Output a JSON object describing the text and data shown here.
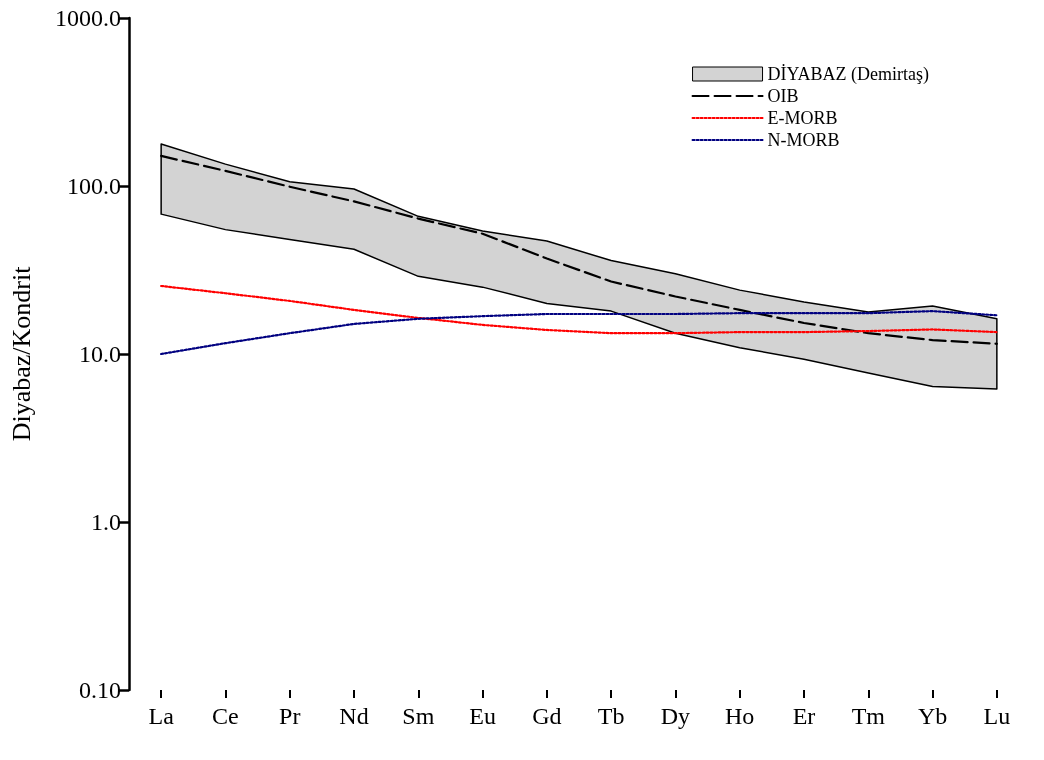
{
  "chart_data": {
    "type": "line",
    "ylabel": "Diyabaz/Kondrit",
    "log": "y",
    "grid": false,
    "legend": "top right",
    "marker": "none",
    "categories": [
      "La",
      "Ce",
      "Pr",
      "Nd",
      "Sm",
      "Eu",
      "Gd",
      "Tb",
      "Dy",
      "Ho",
      "Er",
      "Tm",
      "Yb",
      "Lu"
    ],
    "ylim": [
      0.1,
      1000
    ],
    "yticks": [
      {
        "value": 0.1,
        "label": "0.10"
      },
      {
        "value": 1,
        "label": "1.0"
      },
      {
        "value": 10,
        "label": "10.0"
      },
      {
        "value": 100,
        "label": "100.0"
      },
      {
        "value": 1000,
        "label": "1000.0"
      }
    ],
    "series": [
      {
        "name": "DİYABAZ (Demirtaş)",
        "type": "area",
        "color": "#d3d3d3",
        "values": [
          null,
          null,
          null,
          null,
          null,
          null,
          null,
          null,
          null,
          null,
          null,
          null,
          null,
          null
        ],
        "upper": [
          178,
          135,
          106,
          96,
          66,
          54,
          47,
          36,
          30,
          24,
          20.4,
          17.8,
          19.3,
          16.2
        ],
        "lower": [
          68,
          55,
          48,
          42,
          29,
          25,
          20,
          18,
          13.3,
          10.9,
          9.3,
          7.7,
          6.4,
          6.2
        ]
      },
      {
        "name": "OIB",
        "type": "line",
        "color": "#000000",
        "line_style": "dashed",
        "values": [
          151,
          123,
          99,
          81,
          64,
          52,
          37,
          27,
          22,
          18.3,
          15.3,
          13.3,
          12.1,
          11.5
        ]
      },
      {
        "name": "E-MORB",
        "type": "line",
        "color": "#ff0000",
        "line_style": "dotted",
        "values": [
          25.4,
          23,
          20.7,
          18.3,
          16.4,
          14.9,
          13.9,
          13.3,
          13.3,
          13.5,
          13.5,
          13.7,
          14,
          13.5
        ]
      },
      {
        "name": "N-MORB",
        "type": "line",
        "color": "#000080",
        "line_style": "dotted",
        "values": [
          10,
          11.6,
          13.3,
          15.1,
          16.2,
          16.8,
          17.3,
          17.3,
          17.3,
          17.5,
          17.5,
          17.5,
          18,
          17
        ]
      }
    ]
  }
}
